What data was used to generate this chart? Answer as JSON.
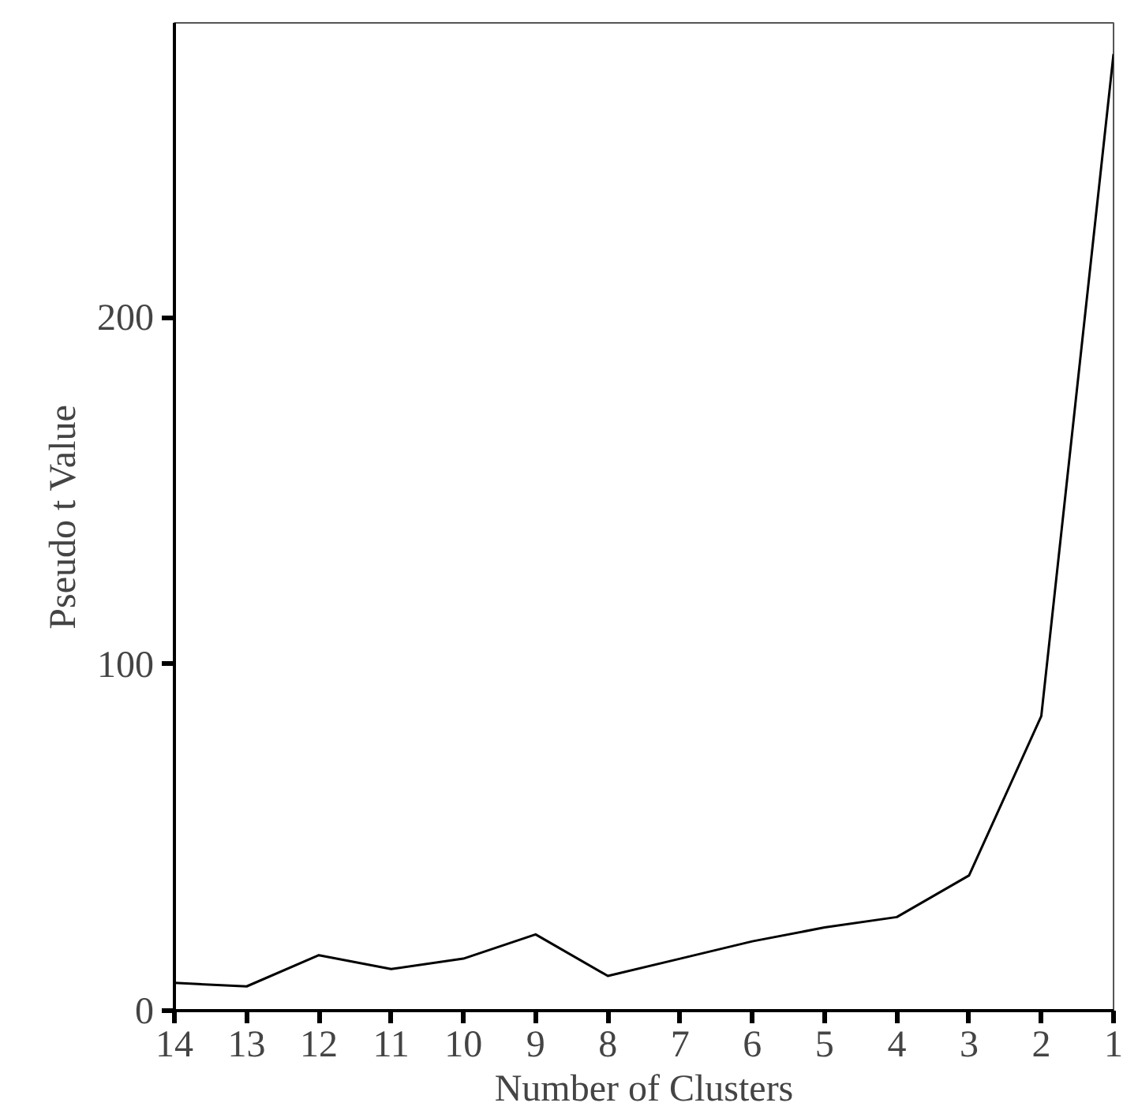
{
  "chart_data": {
    "type": "line",
    "xlabel": "Number of Clusters",
    "ylabel": "Pseudo t Value",
    "x": [
      14,
      13,
      12,
      11,
      10,
      9,
      8,
      7,
      6,
      5,
      4,
      3,
      2,
      1
    ],
    "series": [
      {
        "color": "#000000",
        "values": [
          8,
          7,
          16,
          12,
          15,
          22,
          10,
          15,
          20,
          24,
          27,
          39,
          85,
          276
        ]
      }
    ],
    "xlim": [
      14,
      1
    ],
    "xticks": [
      14,
      13,
      12,
      11,
      10,
      9,
      8,
      7,
      6,
      5,
      4,
      3,
      2,
      1
    ],
    "ylim": [
      0,
      285
    ],
    "yticks": [
      0,
      100,
      200
    ],
    "grid": false,
    "marker": "none",
    "line_style": "solid"
  }
}
